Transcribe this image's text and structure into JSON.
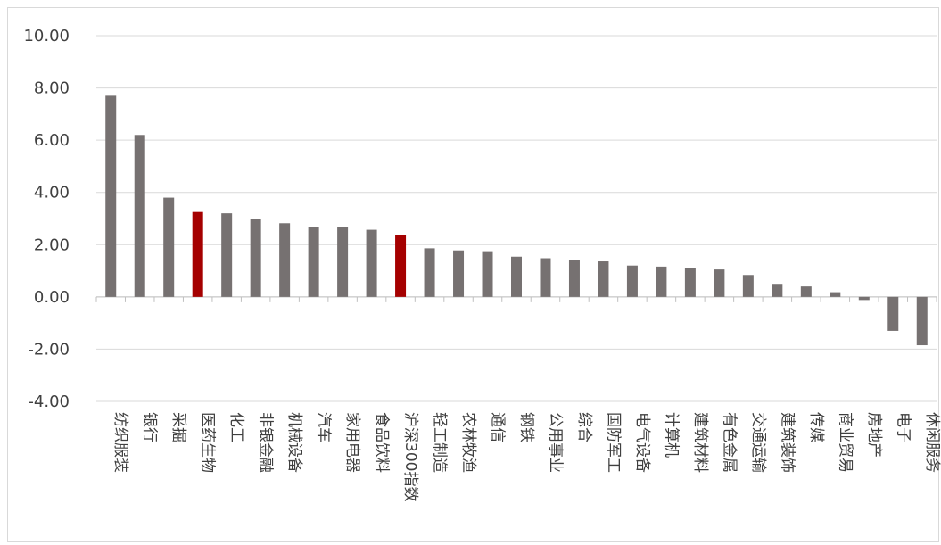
{
  "chart_data": {
    "type": "bar",
    "title": "",
    "xlabel": "",
    "ylabel": "",
    "ylim": [
      -4,
      10
    ],
    "yticks": [
      10,
      8,
      6,
      4,
      2,
      0,
      -2,
      -4
    ],
    "ytick_labels": [
      "10.00",
      "8.00",
      "6.00",
      "4.00",
      "2.00",
      "0.00",
      "-2.00",
      "-4.00"
    ],
    "grid": true,
    "legend": "none",
    "colors": {
      "default": "#767171",
      "highlight": "#a50000",
      "grid": "#d9d9d9"
    },
    "highlighted_categories": [
      "医药生物",
      "沪深300指数"
    ],
    "categories": [
      "纺织服装",
      "银行",
      "采掘",
      "医药生物",
      "化工",
      "非银金融",
      "机械设备",
      "汽车",
      "家用电器",
      "食品饮料",
      "沪深300指数",
      "轻工制造",
      "农林牧渔",
      "通信",
      "钢铁",
      "公用事业",
      "综合",
      "国防军工",
      "电气设备",
      "计算机",
      "建筑材料",
      "有色金属",
      "交通运输",
      "建筑装饰",
      "传媒",
      "商业贸易",
      "房地产",
      "电子",
      "休闲服务"
    ],
    "values": [
      7.7,
      6.2,
      3.8,
      3.25,
      3.2,
      3.0,
      2.82,
      2.68,
      2.67,
      2.57,
      2.38,
      1.86,
      1.78,
      1.75,
      1.54,
      1.48,
      1.42,
      1.36,
      1.2,
      1.16,
      1.1,
      1.05,
      0.84,
      0.5,
      0.4,
      0.18,
      -0.12,
      -1.3,
      -1.85
    ]
  }
}
